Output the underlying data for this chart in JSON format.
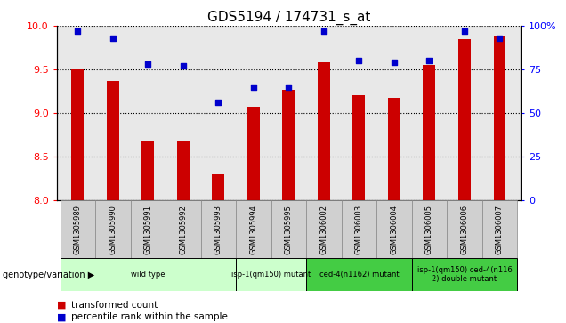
{
  "title": "GDS5194 / 174731_s_at",
  "samples": [
    "GSM1305989",
    "GSM1305990",
    "GSM1305991",
    "GSM1305992",
    "GSM1305993",
    "GSM1305994",
    "GSM1305995",
    "GSM1306002",
    "GSM1306003",
    "GSM1306004",
    "GSM1306005",
    "GSM1306006",
    "GSM1306007"
  ],
  "bar_values": [
    9.5,
    9.37,
    8.67,
    8.67,
    8.3,
    9.07,
    9.27,
    9.58,
    9.2,
    9.17,
    9.55,
    9.85,
    9.88
  ],
  "dot_values": [
    97,
    93,
    78,
    77,
    56,
    65,
    65,
    97,
    80,
    79,
    80,
    97,
    93
  ],
  "bar_color": "#cc0000",
  "dot_color": "#0000cc",
  "ylim_left": [
    8,
    10
  ],
  "ylim_right": [
    0,
    100
  ],
  "yticks_left": [
    8.0,
    8.5,
    9.0,
    9.5,
    10.0
  ],
  "yticks_right": [
    0,
    25,
    50,
    75,
    100
  ],
  "group_data": [
    {
      "label": "wild type",
      "start": 0,
      "end": 4,
      "color": "#ccffcc"
    },
    {
      "label": "isp-1(qm150) mutant",
      "start": 5,
      "end": 6,
      "color": "#ccffcc"
    },
    {
      "label": "ced-4(n1162) mutant",
      "start": 7,
      "end": 9,
      "color": "#44cc44"
    },
    {
      "label": "isp-1(qm150) ced-4(n116\n2) double mutant",
      "start": 10,
      "end": 12,
      "color": "#44cc44"
    }
  ],
  "legend_label_bar": "transformed count",
  "legend_label_dot": "percentile rank within the sample",
  "genotype_label": "genotype/variation",
  "background_color": "#ffffff",
  "plot_bg_color": "#e8e8e8",
  "tick_label_bg": "#d0d0d0"
}
